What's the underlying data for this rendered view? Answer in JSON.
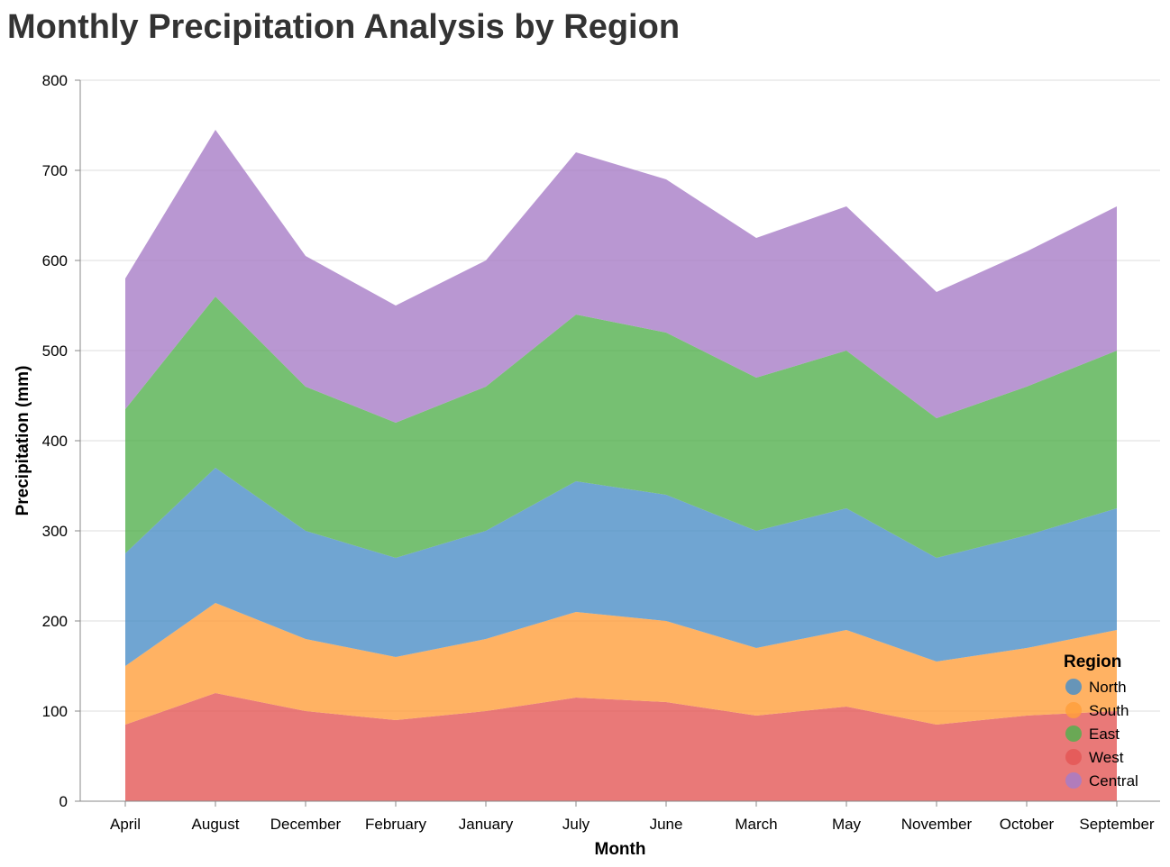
{
  "chart_data": {
    "type": "area",
    "stacked": true,
    "title": "Monthly Precipitation Analysis by Region",
    "xlabel": "Month",
    "ylabel": "Precipitation (mm)",
    "ylim": [
      0,
      800
    ],
    "yticks": [
      0,
      100,
      200,
      300,
      400,
      500,
      600,
      700,
      800
    ],
    "grid": true,
    "legend_title": "Region",
    "legend_position": "bottom-right",
    "categories": [
      "April",
      "August",
      "December",
      "February",
      "January",
      "July",
      "June",
      "March",
      "May",
      "November",
      "October",
      "September"
    ],
    "series": [
      {
        "name": "West",
        "color": "#e45756",
        "values": [
          85,
          120,
          100,
          90,
          100,
          115,
          110,
          95,
          105,
          85,
          95,
          100
        ]
      },
      {
        "name": "South",
        "color": "#ff9f3c",
        "values": [
          65,
          100,
          80,
          70,
          80,
          95,
          90,
          75,
          85,
          70,
          75,
          90
        ]
      },
      {
        "name": "North",
        "color": "#4c8fc7",
        "values": [
          125,
          150,
          120,
          110,
          120,
          145,
          140,
          130,
          135,
          115,
          125,
          135
        ]
      },
      {
        "name": "East",
        "color": "#54b04f",
        "values": [
          160,
          190,
          160,
          150,
          160,
          185,
          180,
          170,
          175,
          155,
          165,
          175
        ]
      },
      {
        "name": "Central",
        "color": "#a77dc7",
        "values": [
          145,
          185,
          145,
          130,
          140,
          180,
          170,
          155,
          160,
          140,
          150,
          160
        ]
      }
    ],
    "legend_order": [
      "North",
      "South",
      "East",
      "West",
      "Central"
    ]
  }
}
